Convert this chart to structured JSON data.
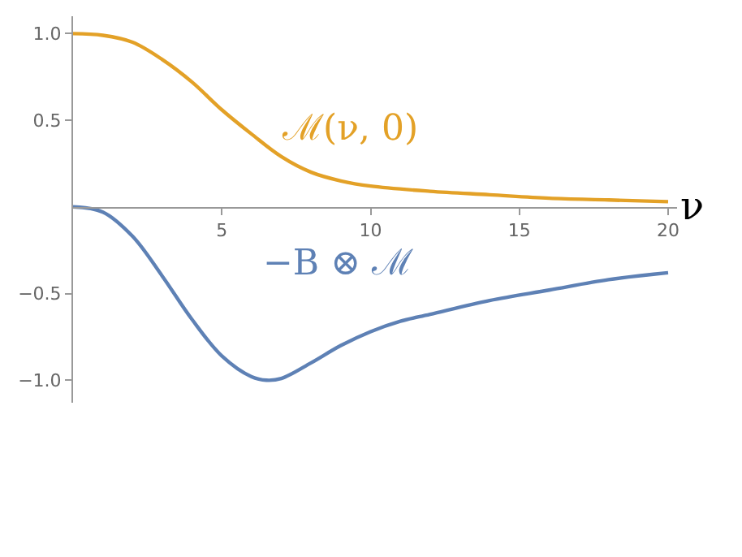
{
  "chart_data": {
    "type": "line",
    "xlabel": "ν",
    "xlim": [
      0,
      20.3
    ],
    "ylim": [
      -1.13,
      1.1
    ],
    "xticks": [
      5,
      10,
      15,
      20
    ],
    "yticks": [
      {
        "value": -1,
        "label": "−1.0"
      },
      {
        "value": -0.5,
        "label": "−0.5"
      },
      {
        "value": 0.5,
        "label": "0.5"
      },
      {
        "value": 1,
        "label": "1.0"
      }
    ],
    "legend": false,
    "marker": "none",
    "line_style": "solid",
    "series": [
      {
        "name": "ℳ(ν, 0)",
        "color": "#e3a127",
        "x": [
          0,
          1,
          2,
          3,
          4,
          5,
          6,
          7,
          8,
          9,
          10,
          12,
          14,
          16,
          18,
          20
        ],
        "values": [
          1,
          0.99,
          0.95,
          0.85,
          0.72,
          0.56,
          0.42,
          0.29,
          0.2,
          0.15,
          0.12,
          0.09,
          0.07,
          0.05,
          0.04,
          0.03
        ]
      },
      {
        "name": "−B ⊗ ℳ",
        "color": "#5e81b5",
        "x": [
          0,
          1,
          2,
          3,
          4,
          5,
          6,
          6.5,
          7,
          8,
          9,
          10,
          11,
          12,
          14,
          16,
          18,
          20
        ],
        "values": [
          0,
          -0.03,
          -0.17,
          -0.4,
          -0.65,
          -0.86,
          -0.98,
          -1.0,
          -0.99,
          -0.9,
          -0.8,
          -0.72,
          -0.66,
          -0.62,
          -0.54,
          -0.48,
          -0.42,
          -0.38
        ]
      }
    ]
  }
}
